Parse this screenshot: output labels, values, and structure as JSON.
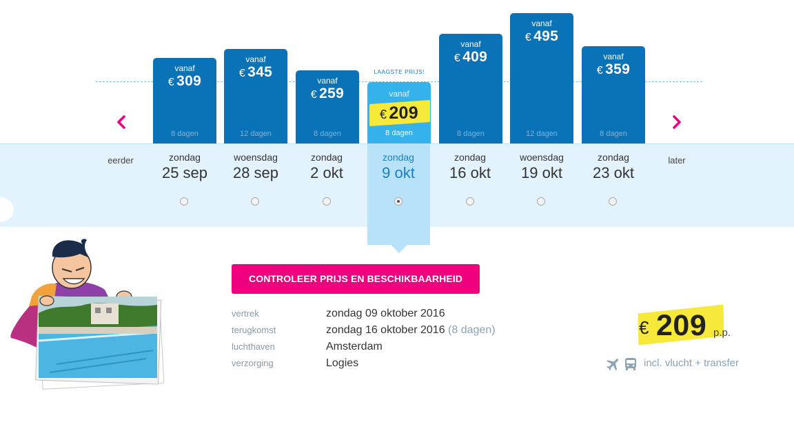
{
  "calendar": {
    "earlier_label": "eerder",
    "later_label": "later",
    "lowest_price_label": "LAAGSTE PRIJS!",
    "options": [
      {
        "from_label": "vanaf",
        "currency": "€",
        "price": "309",
        "duration": "8 dagen",
        "weekday": "zondag",
        "date": "25 sep",
        "selected": false
      },
      {
        "from_label": "vanaf",
        "currency": "€",
        "price": "345",
        "duration": "12 dagen",
        "weekday": "woensdag",
        "date": "28 sep",
        "selected": false
      },
      {
        "from_label": "vanaf",
        "currency": "€",
        "price": "259",
        "duration": "8 dagen",
        "weekday": "zondag",
        "date": "2 okt",
        "selected": false
      },
      {
        "from_label": "vanaf",
        "currency": "€",
        "price": "209",
        "duration": "8 dagen",
        "weekday": "zondag",
        "date": "9 okt",
        "selected": true
      },
      {
        "from_label": "vanaf",
        "currency": "€",
        "price": "409",
        "duration": "8 dagen",
        "weekday": "zondag",
        "date": "16 okt",
        "selected": false
      },
      {
        "from_label": "vanaf",
        "currency": "€",
        "price": "495",
        "duration": "12 dagen",
        "weekday": "woensdag",
        "date": "19 okt",
        "selected": false
      },
      {
        "from_label": "vanaf",
        "currency": "€",
        "price": "359",
        "duration": "8 dagen",
        "weekday": "zondag",
        "date": "23 okt",
        "selected": false
      }
    ]
  },
  "cta": {
    "label": "CONTROLEER PRIJS EN BESCHIKBAARHEID"
  },
  "details": {
    "departure_label": "vertrek",
    "departure_value": "zondag 09 oktober 2016",
    "return_label": "terugkomst",
    "return_value": "zondag 16 oktober 2016",
    "return_duration": "(8 dagen)",
    "airport_label": "luchthaven",
    "airport_value": "Amsterdam",
    "board_label": "verzorging",
    "board_value": "Logies"
  },
  "summary": {
    "currency": "€",
    "price": "209",
    "per_person": "p.p.",
    "included_text": "incl. vlucht + transfer"
  },
  "colors": {
    "bar": "#0a72b6",
    "bar_selected": "#35b1ec",
    "highlight": "#f7e93a",
    "cta": "#ee007f",
    "band": "#e3f3fd",
    "nav_arrow": "#ee007f"
  },
  "icons": [
    "chevron-left-icon",
    "chevron-right-icon",
    "plane-icon",
    "bus-icon",
    "mascot-illustration",
    "pool-photo"
  ]
}
